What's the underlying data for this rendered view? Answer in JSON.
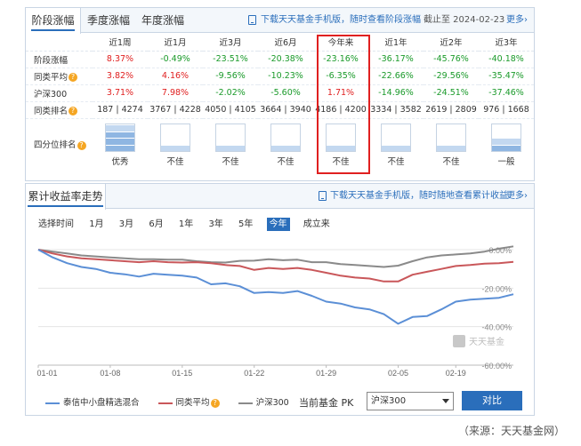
{
  "tabs": [
    {
      "label": "阶段涨幅",
      "active": true
    },
    {
      "label": "季度涨幅",
      "active": false
    },
    {
      "label": "年度涨幅",
      "active": false
    }
  ],
  "perf_header": {
    "download_link": "下载天天基金手机版，随时查看阶段涨幅",
    "as_of": "截止至 2024-02-23",
    "more": "更多"
  },
  "periods": [
    "近1周",
    "近1月",
    "近3月",
    "近6月",
    "今年来",
    "近1年",
    "近2年",
    "近3年"
  ],
  "rows": [
    {
      "label": "阶段涨幅",
      "help": false,
      "values": [
        "8.37%",
        "-0.49%",
        "-23.51%",
        "-20.38%",
        "-23.16%",
        "-36.17%",
        "-45.76%",
        "-40.18%"
      ]
    },
    {
      "label": "同类平均",
      "help": true,
      "values": [
        "3.82%",
        "4.16%",
        "-9.56%",
        "-10.23%",
        "-6.35%",
        "-22.66%",
        "-29.56%",
        "-35.47%"
      ]
    },
    {
      "label": "沪深300",
      "help": false,
      "values": [
        "3.71%",
        "7.98%",
        "-2.02%",
        "-5.60%",
        "1.71%",
        "-14.96%",
        "-24.51%",
        "-37.46%"
      ]
    },
    {
      "label": "同类排名",
      "help": true,
      "values": [
        "187 | 4274",
        "3767 | 4228",
        "4050 | 4105",
        "3664 | 3940",
        "4186 | 4200",
        "3334 | 3582",
        "2619 | 2809",
        "976 | 1668"
      ]
    }
  ],
  "quartile": {
    "label": "四分位排名",
    "help": true,
    "levels": [
      4,
      1,
      1,
      1,
      1,
      1,
      1,
      2
    ],
    "labels": [
      "优秀",
      "不佳",
      "不佳",
      "不佳",
      "不佳",
      "不佳",
      "不佳",
      "一般"
    ]
  },
  "chart_header": {
    "title": "累计收益率走势",
    "download_link": "下载天天基金手机版，随时随地查看累计收益",
    "more": "更多"
  },
  "range": {
    "label": "选择时间",
    "options": [
      "1月",
      "3月",
      "6月",
      "1年",
      "3年",
      "5年",
      "今年",
      "成立来"
    ],
    "active": "今年"
  },
  "chart_data": {
    "type": "line",
    "x": [
      "01-01",
      "01-02",
      "01-03",
      "01-04",
      "01-05",
      "01-08",
      "01-09",
      "01-10",
      "01-11",
      "01-12",
      "01-15",
      "01-16",
      "01-17",
      "01-18",
      "01-19",
      "01-22",
      "01-23",
      "01-24",
      "01-25",
      "01-26",
      "01-29",
      "01-30",
      "01-31",
      "02-01",
      "02-02",
      "02-05",
      "02-06",
      "02-07",
      "02-08",
      "02-19",
      "02-20",
      "02-21",
      "02-22",
      "02-23"
    ],
    "x_ticks": [
      "01-01",
      "01-08",
      "01-15",
      "01-22",
      "01-29",
      "02-05",
      "02-19"
    ],
    "y_ticks": [
      "0.00%",
      "-20.00%",
      "-40.00%",
      "-60.00%"
    ],
    "ylim": [
      -60,
      0
    ],
    "series": [
      {
        "name": "泰信中小盘精选混合",
        "color": "#5b8fd6",
        "values": [
          0,
          -4,
          -7,
          -9,
          -10,
          -12,
          -12.8,
          -14,
          -12.5,
          -13,
          -13.5,
          -14.5,
          -18,
          -17.5,
          -19,
          -22.5,
          -22,
          -22.5,
          -21.5,
          -24,
          -27,
          -28,
          -30,
          -31,
          -33.5,
          -38.5,
          -35,
          -34.5,
          -31,
          -27,
          -26,
          -25.5,
          -25,
          -23.16
        ]
      },
      {
        "name": "同类平均",
        "color": "#c9575a",
        "values": [
          0,
          -2,
          -3.5,
          -4.5,
          -5,
          -5.5,
          -6,
          -6.5,
          -6,
          -6.5,
          -6.7,
          -6.5,
          -7,
          -8,
          -8.5,
          -10.5,
          -9.5,
          -10,
          -9.5,
          -10.5,
          -12,
          -13.5,
          -14.5,
          -15,
          -16.5,
          -16.5,
          -13,
          -11.5,
          -10,
          -8.5,
          -8,
          -7.3,
          -7,
          -6.35
        ]
      },
      {
        "name": "沪深300",
        "color": "#8a8a8a",
        "values": [
          0,
          -1,
          -2,
          -3,
          -3.5,
          -4,
          -4.5,
          -5,
          -5,
          -5.2,
          -5.2,
          -6,
          -6.5,
          -6.7,
          -5.8,
          -5.7,
          -5,
          -5.5,
          -5.2,
          -6.5,
          -6.5,
          -7.5,
          -8,
          -8.5,
          -9,
          -8.3,
          -6,
          -4,
          -3,
          -2.5,
          -2,
          -1,
          0.5,
          1.71
        ]
      }
    ],
    "legend": [
      {
        "name": "泰信中小盘精选混合",
        "help": false
      },
      {
        "name": "同类平均",
        "help": true
      },
      {
        "name": "沪深300",
        "help": false
      }
    ],
    "legend_position": "bottom",
    "grid": true
  },
  "watermark": "天天基金",
  "pk": {
    "label": "当前基金  PK",
    "selected": "沪深300",
    "button": "对比"
  },
  "source": "（来源：天天基金网）"
}
